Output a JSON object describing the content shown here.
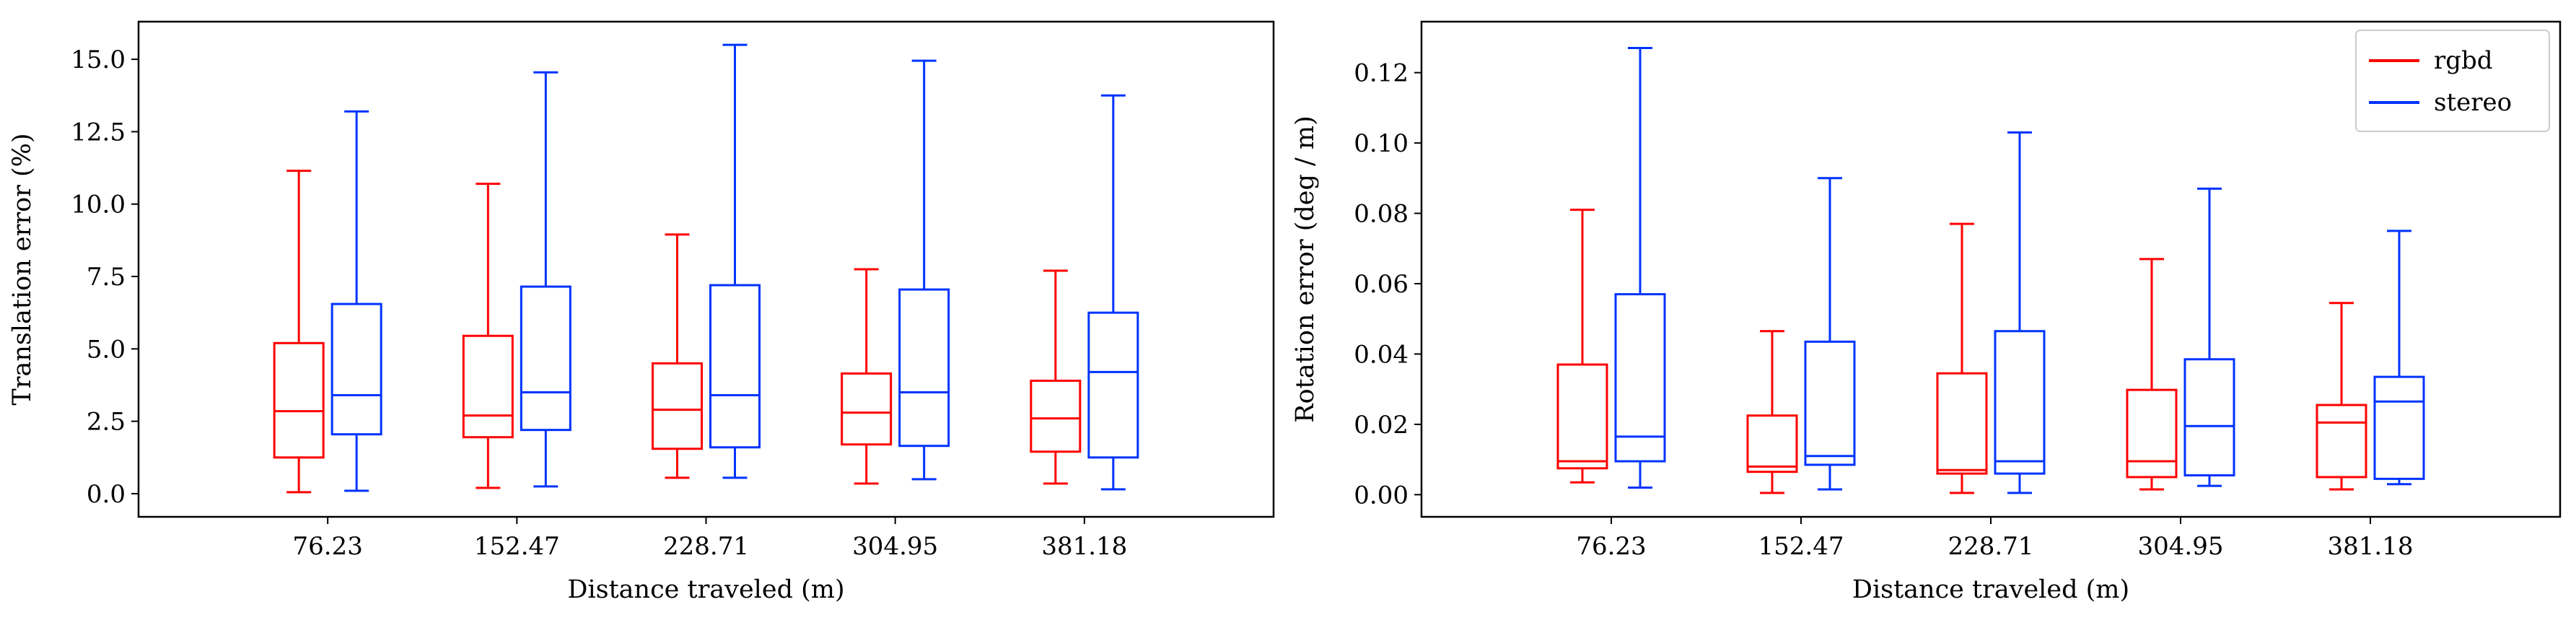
{
  "colors": {
    "rgbd": "#ff0000",
    "stereo": "#0033ff",
    "axes": "#000000"
  },
  "legend": {
    "position": "top-right",
    "entries": [
      {
        "name": "rgbd",
        "color": "#ff0000"
      },
      {
        "name": "stereo",
        "color": "#0033ff"
      }
    ]
  },
  "chart_data": [
    {
      "type": "boxplot",
      "xlabel": "Distance traveled (m)",
      "ylabel": "Translation error (%)",
      "ylim": [
        -0.8,
        16.3
      ],
      "yticks": [
        0.0,
        2.5,
        5.0,
        7.5,
        10.0,
        12.5,
        15.0
      ],
      "ytick_labels": [
        "0.0",
        "2.5",
        "5.0",
        "7.5",
        "10.0",
        "12.5",
        "15.0"
      ],
      "categories": [
        "76.23",
        "152.47",
        "228.71",
        "304.95",
        "381.18"
      ],
      "grid": false,
      "series": [
        {
          "name": "rgbd",
          "color": "#ff0000",
          "boxes": [
            {
              "whislo": 0.05,
              "q1": 1.25,
              "med": 2.85,
              "q3": 5.2,
              "whishi": 11.15
            },
            {
              "whislo": 0.2,
              "q1": 1.95,
              "med": 2.7,
              "q3": 5.45,
              "whishi": 10.7
            },
            {
              "whislo": 0.55,
              "q1": 1.55,
              "med": 2.9,
              "q3": 4.5,
              "whishi": 8.95
            },
            {
              "whislo": 0.35,
              "q1": 1.7,
              "med": 2.8,
              "q3": 4.15,
              "whishi": 7.75
            },
            {
              "whislo": 0.35,
              "q1": 1.45,
              "med": 2.6,
              "q3": 3.9,
              "whishi": 7.7
            }
          ]
        },
        {
          "name": "stereo",
          "color": "#0033ff",
          "boxes": [
            {
              "whislo": 0.1,
              "q1": 2.05,
              "med": 3.4,
              "q3": 6.55,
              "whishi": 13.2
            },
            {
              "whislo": 0.25,
              "q1": 2.2,
              "med": 3.5,
              "q3": 7.15,
              "whishi": 14.55
            },
            {
              "whislo": 0.55,
              "q1": 1.6,
              "med": 3.4,
              "q3": 7.2,
              "whishi": 15.5
            },
            {
              "whislo": 0.5,
              "q1": 1.65,
              "med": 3.5,
              "q3": 7.05,
              "whishi": 14.95
            },
            {
              "whislo": 0.15,
              "q1": 1.25,
              "med": 4.2,
              "q3": 6.25,
              "whishi": 13.75
            }
          ]
        }
      ]
    },
    {
      "type": "boxplot",
      "xlabel": "Distance traveled (m)",
      "ylabel": "Rotation error (deg / m)",
      "ylim": [
        -0.0063,
        0.1345
      ],
      "yticks": [
        0.0,
        0.02,
        0.04,
        0.06,
        0.08,
        0.1,
        0.12
      ],
      "ytick_labels": [
        "0.00",
        "0.02",
        "0.04",
        "0.06",
        "0.08",
        "0.10",
        "0.12"
      ],
      "categories": [
        "76.23",
        "152.47",
        "228.71",
        "304.95",
        "381.18"
      ],
      "grid": false,
      "series": [
        {
          "name": "rgbd",
          "color": "#ff0000",
          "boxes": [
            {
              "whislo": 0.0035,
              "q1": 0.0075,
              "med": 0.0095,
              "q3": 0.037,
              "whishi": 0.081
            },
            {
              "whislo": 0.0005,
              "q1": 0.0065,
              "med": 0.008,
              "q3": 0.0225,
              "whishi": 0.0465
            },
            {
              "whislo": 0.0005,
              "q1": 0.006,
              "med": 0.007,
              "q3": 0.0345,
              "whishi": 0.077
            },
            {
              "whislo": 0.0015,
              "q1": 0.005,
              "med": 0.0095,
              "q3": 0.0298,
              "whishi": 0.067
            },
            {
              "whislo": 0.0015,
              "q1": 0.005,
              "med": 0.0205,
              "q3": 0.0255,
              "whishi": 0.0545
            }
          ]
        },
        {
          "name": "stereo",
          "color": "#0033ff",
          "boxes": [
            {
              "whislo": 0.002,
              "q1": 0.0095,
              "med": 0.0165,
              "q3": 0.057,
              "whishi": 0.127
            },
            {
              "whislo": 0.0015,
              "q1": 0.0085,
              "med": 0.011,
              "q3": 0.0435,
              "whishi": 0.09
            },
            {
              "whislo": 0.0005,
              "q1": 0.006,
              "med": 0.0095,
              "q3": 0.0465,
              "whishi": 0.103
            },
            {
              "whislo": 0.0025,
              "q1": 0.0055,
              "med": 0.0195,
              "q3": 0.0385,
              "whishi": 0.087
            },
            {
              "whislo": 0.003,
              "q1": 0.0045,
              "med": 0.0265,
              "q3": 0.0335,
              "whishi": 0.075
            }
          ]
        }
      ]
    }
  ]
}
